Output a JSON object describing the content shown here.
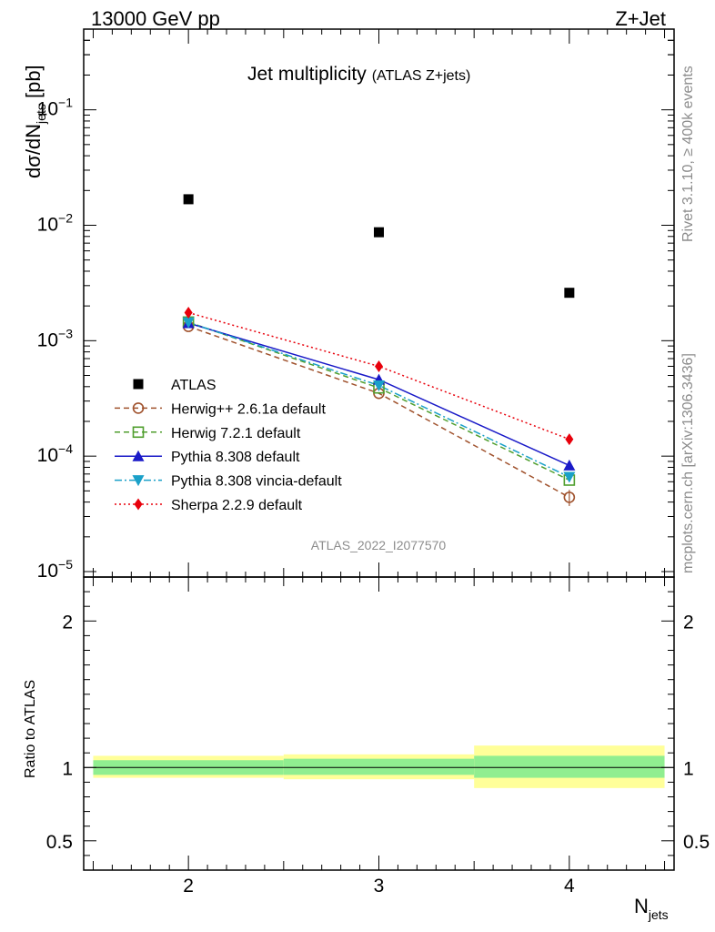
{
  "header": {
    "left": "13000 GeV pp",
    "right": "Z+Jet"
  },
  "side_text": {
    "rivet": "Rivet 3.1.10, ≥ 400k events",
    "mcplots": "mcplots.cern.ch [arXiv:1306.3436]"
  },
  "chart_data": {
    "type": "line",
    "title": "Jet multiplicity",
    "subtitle": "(ATLAS Z+jets)",
    "watermark": "ATLAS_2022_I2077570",
    "xlabel_main": "N",
    "xlabel_sub": "jets",
    "ylabel_main": "dσ/dN",
    "ylabel_sub": "jets",
    "ylabel_unit": " [pb]",
    "ratio_ylabel": "Ratio to ATLAS",
    "x": [
      2,
      3,
      4
    ],
    "xlim": [
      1.45,
      4.55
    ],
    "ylim": [
      1e-05,
      0.5
    ],
    "yscale": "log",
    "ratio_ylim": [
      0.3,
      2.3
    ],
    "ytick_labels": [
      {
        "base": "10",
        "exp": "−5",
        "value": 1e-05
      },
      {
        "base": "10",
        "exp": "−4",
        "value": 0.0001
      },
      {
        "base": "10",
        "exp": "−3",
        "value": 0.001
      },
      {
        "base": "10",
        "exp": "−2",
        "value": 0.01
      },
      {
        "base": "10",
        "exp": "−1",
        "value": 0.1
      }
    ],
    "xtick_labels": [
      "2",
      "3",
      "4"
    ],
    "ratio_ytick_labels": [
      "0.5",
      "1",
      "2"
    ],
    "ratio_ytick_values": [
      0.5,
      1,
      2
    ],
    "series": [
      {
        "name": "ATLAS",
        "color": "#000000",
        "marker": "square-filled",
        "line": "none",
        "values": [
          0.0168,
          0.0087,
          0.0026
        ]
      },
      {
        "name": "Herwig++ 2.6.1a default",
        "color": "#a0522d",
        "marker": "circle-open",
        "line": "dashed",
        "values": [
          0.00133,
          0.00035,
          4.4e-05
        ],
        "errors": [
          0,
          0,
          7e-06
        ]
      },
      {
        "name": "Herwig 7.2.1 default",
        "color": "#4f9e2d",
        "marker": "square-open",
        "line": "dashed",
        "values": [
          0.00145,
          0.00039,
          6.2e-05
        ]
      },
      {
        "name": "Pythia 8.308 default",
        "color": "#1a1ac8",
        "marker": "triangle-up-filled",
        "line": "solid",
        "values": [
          0.00142,
          0.00046,
          8.3e-05
        ]
      },
      {
        "name": "Pythia 8.308 vincia-default",
        "color": "#1aa0c8",
        "marker": "triangle-down-filled",
        "line": "dashdot",
        "values": [
          0.00144,
          0.00041,
          6.6e-05
        ]
      },
      {
        "name": "Sherpa 2.2.9 default",
        "color": "#e8000b",
        "marker": "diamond-filled",
        "line": "dotted",
        "values": [
          0.00175,
          0.0006,
          0.00014
        ]
      }
    ],
    "ratio_bands": [
      {
        "xmin": 1.5,
        "xmax": 2.5,
        "inner": [
          0.95,
          1.05
        ],
        "outer": [
          0.93,
          1.08
        ]
      },
      {
        "xmin": 2.5,
        "xmax": 3.5,
        "inner": [
          0.95,
          1.06
        ],
        "outer": [
          0.92,
          1.09
        ]
      },
      {
        "xmin": 3.5,
        "xmax": 4.5,
        "inner": [
          0.93,
          1.08
        ],
        "outer": [
          0.86,
          1.15
        ]
      }
    ],
    "band_colors": {
      "inner": "#90ee90",
      "outer": "#ffff99"
    }
  }
}
